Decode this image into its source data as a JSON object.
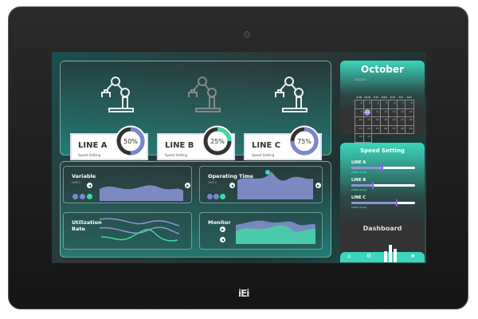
{
  "device": {
    "logo": "iEi"
  },
  "lines": [
    {
      "name": "LINE A",
      "subtitle": "Speed Setting",
      "percent": "50%",
      "value": 50,
      "color": "#7b86d1"
    },
    {
      "name": "LINE B",
      "subtitle": "Speed Setting",
      "percent": "25%",
      "value": 25,
      "color": "#3ed9a6"
    },
    {
      "name": "LINE C",
      "subtitle": "Speed Setting",
      "percent": "75%",
      "value": 75,
      "color": "#7b86d1"
    }
  ],
  "widgets": {
    "variable": {
      "title": "Variable",
      "subtitle": "LINE C"
    },
    "operating_time": {
      "title": "Operating Time",
      "subtitle": "LINE A"
    },
    "utilization": {
      "title": "Utilization Rate"
    },
    "monitor": {
      "title": "Monitor"
    }
  },
  "calendar": {
    "month": "October",
    "date_label": "2022/10",
    "weekdays": [
      "SUN",
      "MON",
      "TUE",
      "WED",
      "THU",
      "FRI",
      "SAT"
    ],
    "weeks": [
      [
        "2",
        "3",
        "4",
        "5",
        "6",
        "7",
        "8"
      ],
      [
        "9",
        "10",
        "11",
        "12",
        "13",
        "14",
        "15"
      ],
      [
        "16",
        "17",
        "18",
        "19",
        "20",
        "21",
        "22"
      ],
      [
        "23",
        "24",
        "25",
        "26",
        "27",
        "28",
        "29"
      ],
      [
        "30",
        "31"
      ]
    ],
    "selected": "10"
  },
  "speed": {
    "title": "Speed Setting",
    "sliders": [
      {
        "label": "LINE A",
        "unit": "(3000 mm/s)",
        "value": 0.48
      },
      {
        "label": "LINE B",
        "unit": "(3000 mm/s)",
        "value": 0.33
      },
      {
        "label": "LINE C",
        "unit": "(4500 mm/s)",
        "value": 0.7
      }
    ]
  },
  "dashboard": {
    "title": "Dashboard"
  },
  "nav": [
    "home-icon",
    "gear-icon",
    "bar-chart-icon",
    "star-icon"
  ],
  "colors": {
    "accent": "#3bd6bd",
    "purple": "#7b86d1",
    "green": "#3ed9a6"
  }
}
